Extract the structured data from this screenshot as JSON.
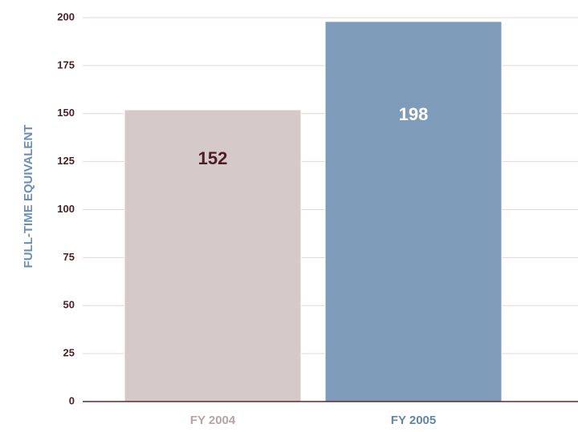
{
  "chart_data": {
    "type": "bar",
    "y_label": "FULL-TIME EQUIVALENT",
    "categories": [
      "FY 2004",
      "FY 2005"
    ],
    "values": [
      152,
      198
    ],
    "colors": [
      "#d6c9c9",
      "#7e9cb9"
    ],
    "ylim": [
      0,
      200
    ],
    "yticks": [
      0,
      25,
      50,
      75,
      100,
      125,
      150,
      175,
      200
    ],
    "grid": true
  }
}
